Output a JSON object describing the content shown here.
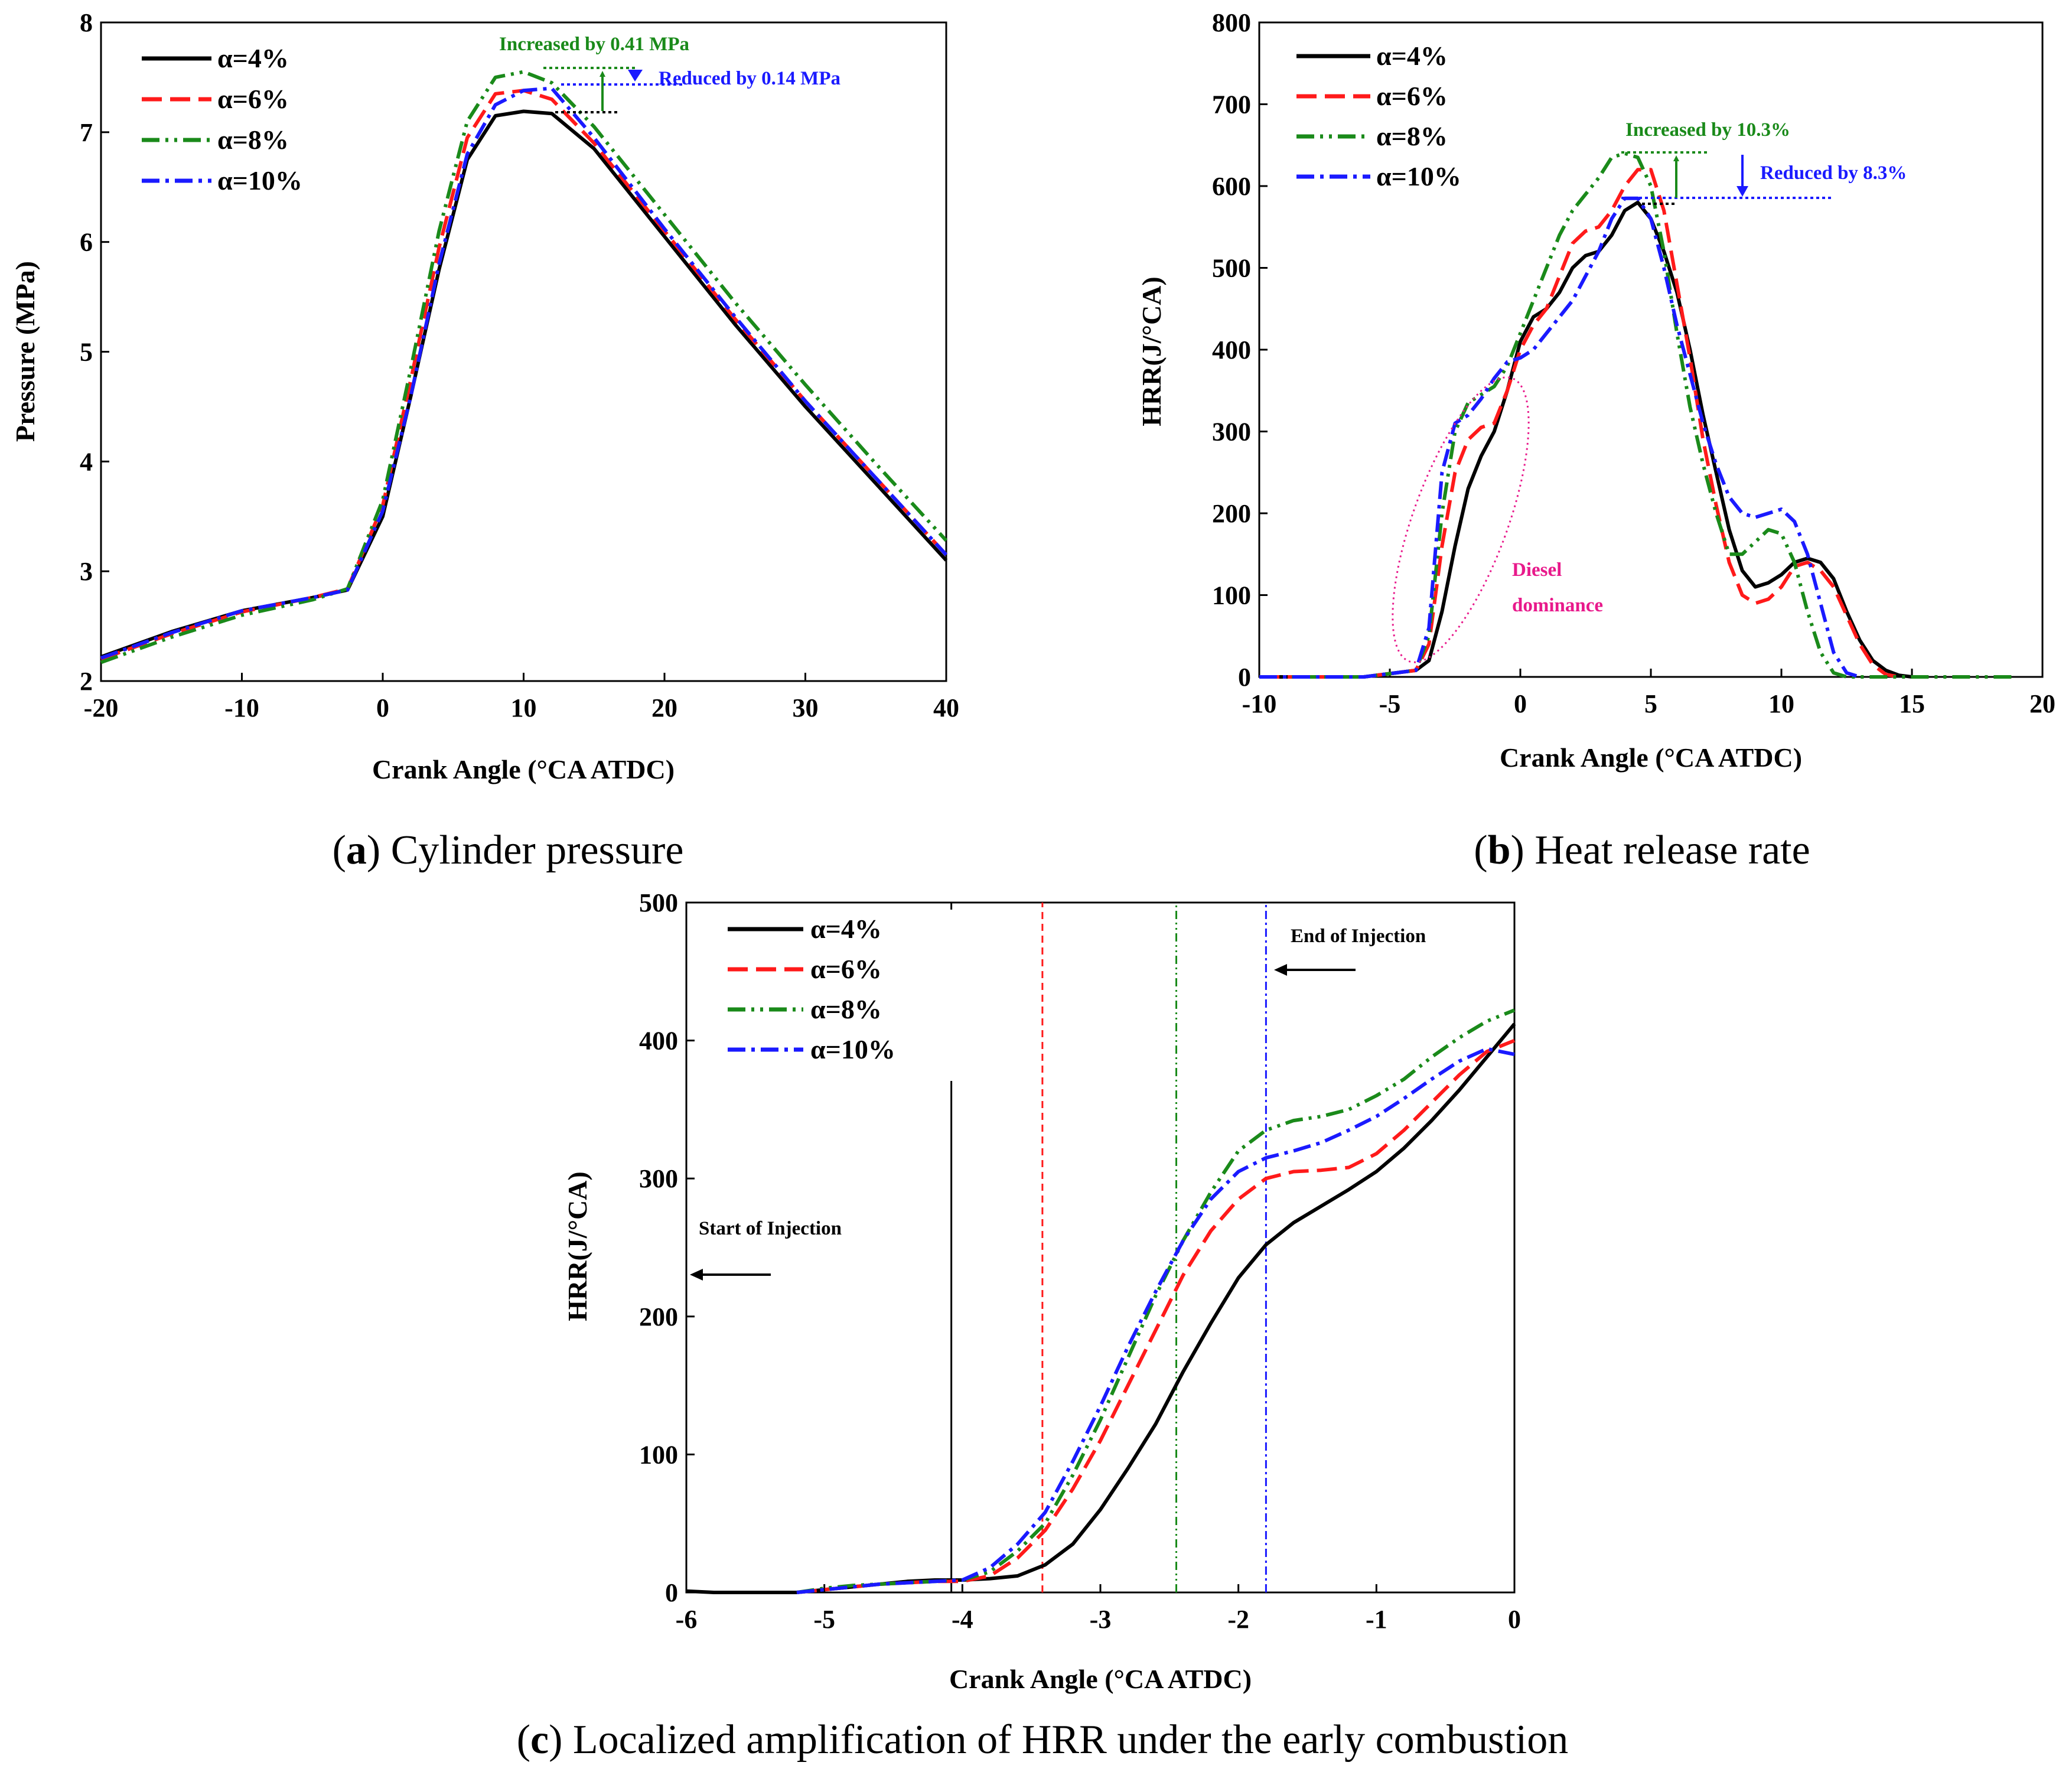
{
  "colors": {
    "a4": "#000000",
    "a6": "#ff1a1a",
    "a8": "#1a8a1a",
    "a10": "#1a1aff",
    "pink": "#e8198b"
  },
  "legend": [
    "α=4%",
    "α=6%",
    "α=8%",
    "α=10%"
  ],
  "captions": {
    "a": {
      "letter": "a",
      "text": " Cylinder pressure"
    },
    "b": {
      "letter": "b",
      "text": " Heat release rate"
    },
    "c": {
      "letter": "c",
      "text": " Localized amplification of HRR under the early combustion"
    }
  },
  "chart_data": [
    {
      "id": "a",
      "type": "line",
      "xlabel": "Crank Angle (°CA ATDC)",
      "ylabel": "Pressure (MPa)",
      "xlim": [
        -20,
        40
      ],
      "ylim": [
        2,
        8
      ],
      "xticks": [
        -20,
        -10,
        0,
        10,
        20,
        30,
        40
      ],
      "yticks": [
        2,
        3,
        4,
        5,
        6,
        7,
        8
      ],
      "annotations": {
        "increase": "Increased by 0.41 MPa",
        "reduce": "Reduced by 0.14 MPa"
      },
      "series": [
        {
          "name": "α=4%",
          "x": [
            -20,
            -15,
            -10,
            -5,
            -2.5,
            0,
            2,
            4,
            6,
            8,
            10,
            12,
            15,
            20,
            25,
            30,
            35,
            40
          ],
          "y": [
            2.22,
            2.45,
            2.64,
            2.76,
            2.83,
            3.5,
            4.6,
            5.75,
            6.75,
            7.15,
            7.19,
            7.17,
            6.85,
            6.05,
            5.25,
            4.5,
            3.8,
            3.1
          ]
        },
        {
          "name": "α=6%",
          "x": [
            -20,
            -15,
            -10,
            -5,
            -2.5,
            0,
            2,
            4,
            6,
            8,
            10,
            12,
            15,
            20,
            25,
            30,
            35,
            40
          ],
          "y": [
            2.2,
            2.43,
            2.63,
            2.76,
            2.84,
            3.6,
            4.75,
            5.95,
            6.95,
            7.35,
            7.38,
            7.3,
            6.9,
            6.1,
            5.3,
            4.55,
            3.85,
            3.15
          ]
        },
        {
          "name": "α=8%",
          "x": [
            -20,
            -15,
            -10,
            -5,
            -2.5,
            0,
            2,
            4,
            6,
            8,
            10,
            12,
            15,
            20,
            25,
            30,
            35,
            40
          ],
          "y": [
            2.17,
            2.4,
            2.6,
            2.74,
            2.84,
            3.65,
            4.85,
            6.1,
            7.1,
            7.5,
            7.55,
            7.45,
            7.05,
            6.25,
            5.45,
            4.7,
            3.98,
            3.28
          ]
        },
        {
          "name": "α=10%",
          "x": [
            -20,
            -15,
            -10,
            -5,
            -2.5,
            0,
            2,
            4,
            6,
            8,
            10,
            12,
            15,
            20,
            25,
            30,
            35,
            40
          ],
          "y": [
            2.21,
            2.44,
            2.64,
            2.76,
            2.83,
            3.55,
            4.6,
            5.8,
            6.8,
            7.25,
            7.38,
            7.4,
            6.95,
            6.12,
            5.32,
            4.55,
            3.85,
            3.15
          ]
        }
      ]
    },
    {
      "id": "b",
      "type": "line",
      "xlabel": "Crank Angle (°CA ATDC)",
      "ylabel": "HRR(J/°CA)",
      "xlim": [
        -10,
        20
      ],
      "ylim": [
        0,
        800
      ],
      "xticks": [
        -10,
        -5,
        0,
        5,
        10,
        15,
        20
      ],
      "yticks": [
        0,
        100,
        200,
        300,
        400,
        500,
        600,
        700,
        800
      ],
      "annotations": {
        "increase": "Increased by 10.3%",
        "reduce": "Reduced by 8.3%",
        "diesel": [
          "Diesel",
          "dominance"
        ]
      },
      "series": [
        {
          "name": "α=4%",
          "x": [
            -10,
            -6,
            -4,
            -3.5,
            -3,
            -2.5,
            -2,
            -1.5,
            -1,
            -0.5,
            0,
            0.5,
            1,
            1.5,
            2,
            2.5,
            3,
            3.5,
            4,
            4.5,
            5,
            5.5,
            6,
            6.5,
            7,
            7.5,
            8,
            8.5,
            9,
            9.5,
            10,
            10.5,
            11,
            11.5,
            12,
            12.5,
            13,
            13.5,
            14,
            14.5,
            15
          ],
          "y": [
            0,
            0,
            8,
            20,
            80,
            160,
            230,
            270,
            300,
            350,
            410,
            440,
            450,
            470,
            500,
            515,
            520,
            540,
            570,
            580,
            560,
            520,
            470,
            400,
            320,
            250,
            180,
            130,
            110,
            115,
            125,
            140,
            145,
            140,
            120,
            80,
            45,
            20,
            8,
            2,
            0
          ]
        },
        {
          "name": "α=6%",
          "x": [
            -10,
            -6,
            -4,
            -3.5,
            -3,
            -2.5,
            -2,
            -1.5,
            -1,
            -0.5,
            0,
            0.5,
            1,
            1.5,
            2,
            2.5,
            3,
            3.5,
            4,
            4.5,
            5,
            5.5,
            6,
            6.5,
            7,
            7.5,
            8,
            8.5,
            9,
            9.5,
            10,
            10.5,
            11,
            11.5,
            12,
            12.5,
            13,
            13.5,
            14,
            14.5
          ],
          "y": [
            0,
            0,
            8,
            40,
            160,
            250,
            290,
            305,
            310,
            350,
            400,
            430,
            450,
            490,
            530,
            545,
            550,
            570,
            600,
            620,
            620,
            570,
            480,
            390,
            290,
            210,
            140,
            100,
            90,
            95,
            110,
            135,
            140,
            130,
            110,
            75,
            40,
            15,
            3,
            0
          ]
        },
        {
          "name": "α=8%",
          "x": [
            -10,
            -6,
            -4,
            -3.5,
            -3,
            -2.5,
            -2,
            -1.5,
            -1,
            -0.5,
            0,
            0.5,
            1,
            1.5,
            2,
            2.5,
            3,
            3.5,
            4,
            4.5,
            5,
            5.5,
            6,
            6.5,
            7,
            7.5,
            8,
            8.5,
            9,
            9.5,
            10,
            10.5,
            11,
            11.5,
            12,
            12.5,
            19
          ],
          "y": [
            0,
            0,
            8,
            50,
            200,
            300,
            335,
            345,
            355,
            380,
            420,
            460,
            500,
            540,
            570,
            590,
            610,
            635,
            640,
            635,
            600,
            520,
            420,
            330,
            260,
            200,
            150,
            150,
            165,
            180,
            175,
            140,
            80,
            30,
            5,
            0,
            0
          ]
        },
        {
          "name": "α=10%",
          "x": [
            -10,
            -6,
            -4,
            -3.5,
            -3,
            -2.5,
            -2,
            -1.5,
            -1,
            -0.5,
            0,
            0.5,
            1,
            1.5,
            2,
            2.5,
            3,
            3.5,
            4,
            4.5,
            5,
            5.5,
            6,
            6.5,
            7,
            7.5,
            8,
            8.5,
            9,
            9.5,
            10,
            10.5,
            11,
            11.5,
            12,
            12.5,
            13
          ],
          "y": [
            0,
            0,
            8,
            60,
            250,
            310,
            320,
            340,
            365,
            385,
            390,
            400,
            420,
            440,
            460,
            490,
            520,
            560,
            585,
            585,
            560,
            500,
            430,
            370,
            310,
            260,
            220,
            200,
            195,
            200,
            205,
            190,
            150,
            90,
            30,
            5,
            0
          ]
        }
      ]
    },
    {
      "id": "c",
      "type": "line",
      "xlabel": "Crank Angle (°CA ATDC)",
      "ylabel": "HRR(J/°CA)",
      "xlim": [
        -6,
        0
      ],
      "ylim": [
        0,
        500
      ],
      "xticks": [
        -6,
        -5,
        -4,
        -3,
        -2,
        -1,
        0
      ],
      "yticks": [
        0,
        100,
        200,
        300,
        400,
        500
      ],
      "annotations": {
        "soi": "Start of Injection",
        "eoi": "End of Injection"
      },
      "vlines": [
        {
          "series": "α=4%",
          "x": -4.08
        },
        {
          "series": "α=6%",
          "x": -3.42
        },
        {
          "series": "α=8%",
          "x": -2.45
        },
        {
          "series": "α=10%",
          "x": -1.8
        }
      ],
      "series": [
        {
          "name": "α=4%",
          "x": [
            -6,
            -5.8,
            -5.6,
            -5.4,
            -5.2,
            -5,
            -4.8,
            -4.6,
            -4.4,
            -4.2,
            -4,
            -3.8,
            -3.6,
            -3.4,
            -3.2,
            -3,
            -2.8,
            -2.6,
            -2.4,
            -2.2,
            -2,
            -1.8,
            -1.6,
            -1.4,
            -1.2,
            -1,
            -0.8,
            -0.6,
            -0.4,
            -0.2,
            0
          ],
          "y": [
            1,
            0,
            0,
            0,
            0,
            2,
            4,
            6,
            8,
            9,
            9,
            10,
            12,
            20,
            35,
            60,
            90,
            122,
            160,
            195,
            228,
            252,
            268,
            280,
            292,
            305,
            322,
            342,
            364,
            388,
            412
          ]
        },
        {
          "name": "α=6%",
          "x": [
            -5.2,
            -5,
            -4.8,
            -4.6,
            -4.4,
            -4.2,
            -4,
            -3.8,
            -3.6,
            -3.4,
            -3.2,
            -3,
            -2.8,
            -2.6,
            -2.4,
            -2.2,
            -2,
            -1.8,
            -1.6,
            -1.4,
            -1.2,
            -1,
            -0.8,
            -0.6,
            -0.4,
            -0.2,
            0
          ],
          "y": [
            0,
            2,
            4,
            6,
            7,
            8,
            8,
            12,
            25,
            45,
            75,
            110,
            150,
            190,
            230,
            262,
            285,
            300,
            305,
            306,
            308,
            318,
            335,
            355,
            375,
            392,
            400
          ]
        },
        {
          "name": "α=8%",
          "x": [
            -5.2,
            -5,
            -4.8,
            -4.6,
            -4.4,
            -4.2,
            -4,
            -3.8,
            -3.6,
            -3.4,
            -3.2,
            -3,
            -2.8,
            -2.6,
            -2.4,
            -2.2,
            -2,
            -1.8,
            -1.6,
            -1.4,
            -1.2,
            -1,
            -0.8,
            -0.6,
            -0.4,
            -0.2,
            0
          ],
          "y": [
            0,
            3,
            5,
            6,
            7,
            8,
            9,
            15,
            30,
            50,
            85,
            125,
            170,
            215,
            255,
            290,
            320,
            335,
            342,
            345,
            350,
            360,
            372,
            388,
            402,
            414,
            422
          ]
        },
        {
          "name": "α=10%",
          "x": [
            -5.2,
            -5,
            -4.8,
            -4.6,
            -4.4,
            -4.2,
            -4,
            -3.8,
            -3.6,
            -3.4,
            -3.2,
            -3,
            -2.8,
            -2.6,
            -2.4,
            -2.2,
            -2,
            -1.8,
            -1.6,
            -1.4,
            -1.2,
            -1,
            -0.8,
            -0.6,
            -0.4,
            -0.2,
            0
          ],
          "y": [
            0,
            2,
            4,
            6,
            7,
            8,
            9,
            18,
            35,
            58,
            95,
            135,
            178,
            218,
            255,
            285,
            305,
            315,
            320,
            326,
            335,
            345,
            358,
            372,
            385,
            394,
            390
          ]
        }
      ]
    }
  ]
}
